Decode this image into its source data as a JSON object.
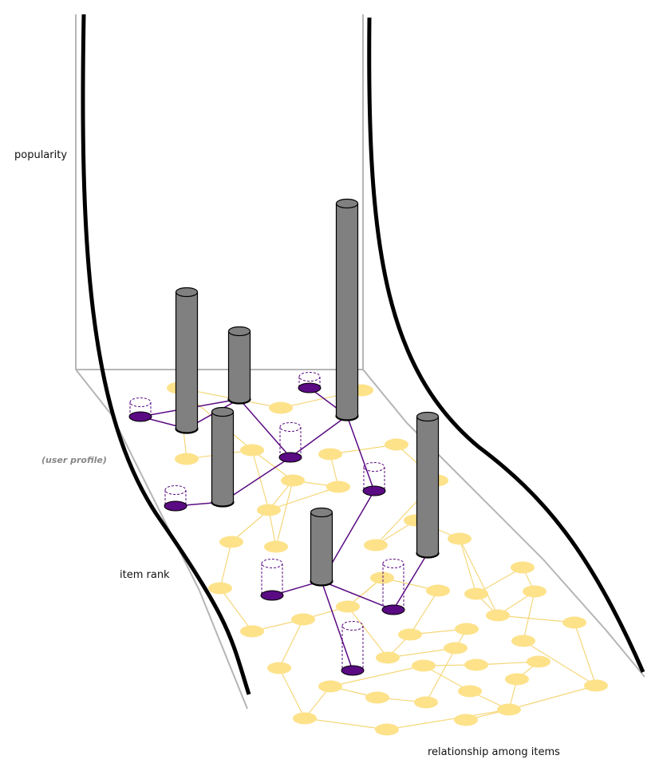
{
  "labels": {
    "popularity": "popularity",
    "user_profile": "(user profile)",
    "item_rank": "item rank",
    "relationship": "relationship among items"
  },
  "colors": {
    "frame": "#b5b5b5",
    "curve": "#000000",
    "item_node": "#fde28a",
    "item_edge": "#f5d77a",
    "profile_node": "#5a0a82",
    "profile_edge": "#5a0a82",
    "cylinder": "#808080"
  }
}
